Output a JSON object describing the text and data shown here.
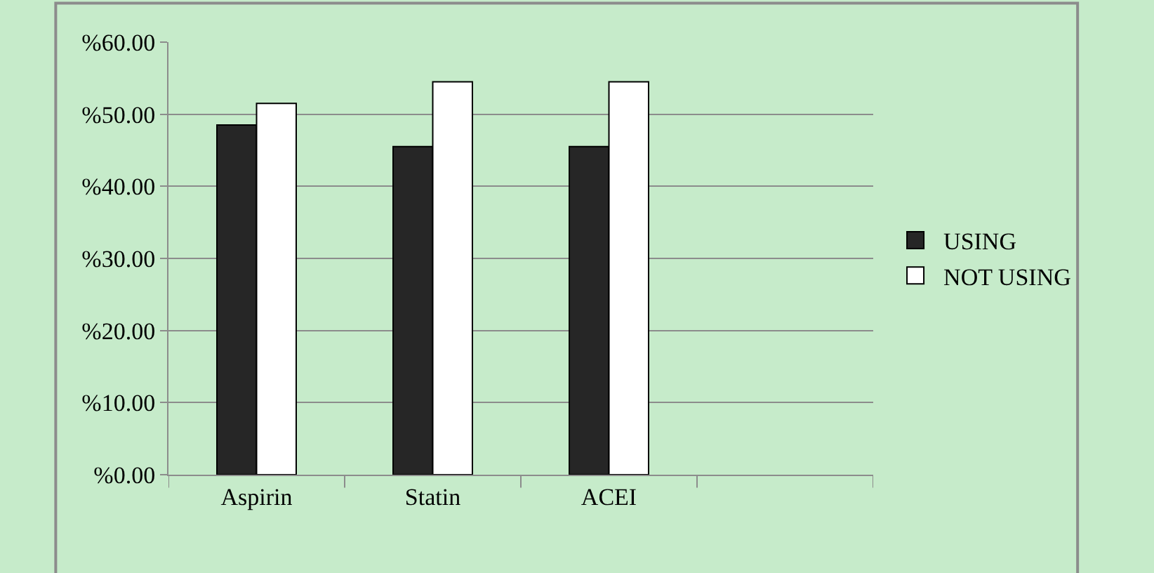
{
  "chart_data": {
    "type": "bar",
    "categories": [
      "Aspirin",
      "Statin",
      "ACEI",
      null
    ],
    "series": [
      {
        "name": "USING",
        "color": "#262626",
        "values": [
          48.5,
          45.5,
          45.5,
          null
        ]
      },
      {
        "name": "NOT USING",
        "color": "#ffffff",
        "values": [
          51.5,
          54.5,
          54.5,
          null
        ]
      }
    ],
    "ylim": [
      0,
      60
    ],
    "yticks": [
      {
        "value": 0,
        "label": "%0.00"
      },
      {
        "value": 10,
        "label": "%10.00"
      },
      {
        "value": 20,
        "label": "%20.00"
      },
      {
        "value": 30,
        "label": "%30.00"
      },
      {
        "value": 40,
        "label": "%40.00"
      },
      {
        "value": 50,
        "label": "%50.00"
      },
      {
        "value": 60,
        "label": "%60.00"
      }
    ],
    "grid": "y",
    "legend": "right"
  }
}
